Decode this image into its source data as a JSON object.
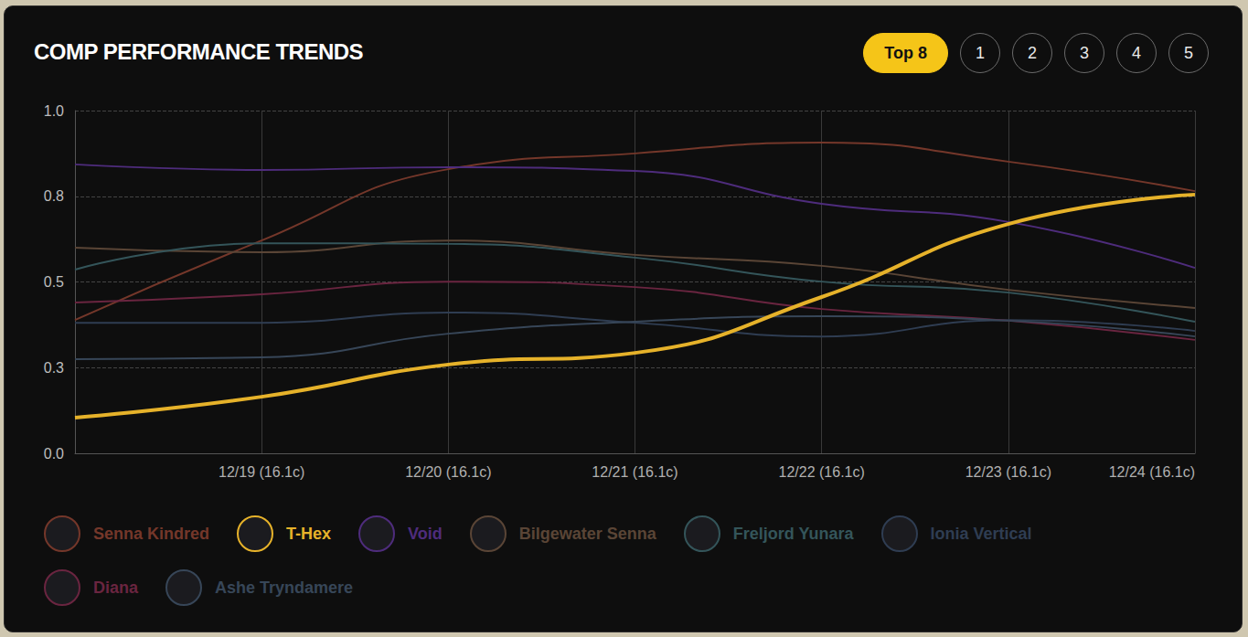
{
  "controls": {
    "options": [
      "Top 8",
      "1",
      "2",
      "3",
      "4",
      "5"
    ],
    "selected": "Top 8"
  },
  "chart_data": {
    "type": "line",
    "title": "COMP PERFORMANCE TRENDS",
    "categories": [
      null,
      "12/19 (16.1c)",
      "12/20 (16.1c)",
      "12/21 (16.1c)",
      "12/22 (16.1c)",
      "12/23 (16.1c)",
      "12/24 (16.1c)"
    ],
    "series": [
      {
        "name": "Senna Kindred",
        "color": "#74372a",
        "values": [
          0.389,
          0.621,
          0.829,
          0.875,
          0.907,
          0.851,
          0.765
        ]
      },
      {
        "name": "T-Hex",
        "color": "#e6b22a",
        "line_style": "bold",
        "values": [
          0.104,
          0.165,
          0.259,
          0.293,
          0.456,
          0.669,
          0.755
        ]
      },
      {
        "name": "Void",
        "color": "#4e2c7c",
        "values": [
          0.843,
          0.827,
          0.835,
          0.824,
          0.728,
          0.675,
          0.541
        ]
      },
      {
        "name": "Bilgewater Senna",
        "color": "#5a4536",
        "values": [
          0.6,
          0.587,
          0.621,
          0.579,
          0.547,
          0.477,
          0.424
        ]
      },
      {
        "name": "Freljord Yunara",
        "color": "#34555a",
        "values": [
          0.536,
          0.613,
          0.611,
          0.571,
          0.501,
          0.469,
          0.384
        ]
      },
      {
        "name": "Ionia Vertical",
        "color": "#2f3d52",
        "values": [
          0.381,
          0.381,
          0.411,
          0.381,
          0.341,
          0.389,
          0.357
        ]
      },
      {
        "name": "Diana",
        "color": "#6a2540",
        "values": [
          0.44,
          0.464,
          0.501,
          0.485,
          0.421,
          0.387,
          0.331
        ]
      },
      {
        "name": "Ashe Tryndamere",
        "color": "#374658",
        "values": [
          0.275,
          0.28,
          0.349,
          0.384,
          0.4,
          0.387,
          0.341
        ]
      }
    ],
    "ylim": [
      0,
      1
    ],
    "yticks": [
      {
        "value": 0,
        "label": "0.0"
      },
      {
        "value": 0.25,
        "label": "0.3"
      },
      {
        "value": 0.5,
        "label": "0.5"
      },
      {
        "value": 0.75,
        "label": "0.8"
      },
      {
        "value": 1,
        "label": "1.0"
      }
    ],
    "grid": true,
    "legend": "bottom"
  }
}
